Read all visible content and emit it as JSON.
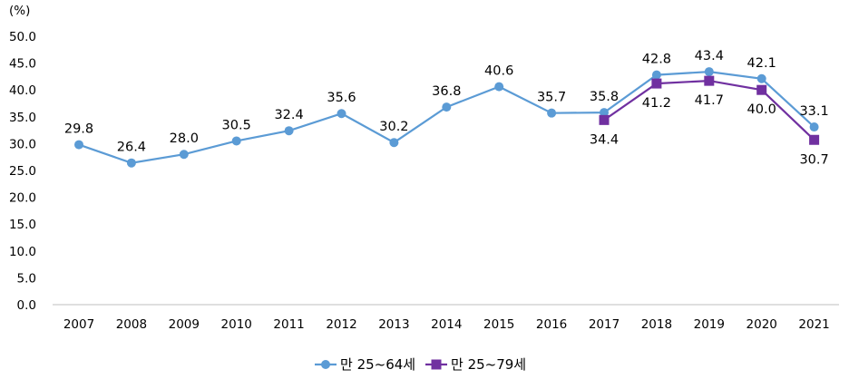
{
  "chart_data": {
    "type": "line",
    "unit_label": "(%)",
    "categories": [
      "2007",
      "2008",
      "2009",
      "2010",
      "2011",
      "2012",
      "2013",
      "2014",
      "2015",
      "2016",
      "2017",
      "2018",
      "2019",
      "2020",
      "2021"
    ],
    "ylim": [
      0,
      50
    ],
    "yticks": [
      "0.0",
      "5.0",
      "10.0",
      "15.0",
      "20.0",
      "25.0",
      "30.0",
      "35.0",
      "40.0",
      "45.0",
      "50.0"
    ],
    "series": [
      {
        "name": "만 25~64세",
        "color": "#5B9BD5",
        "marker": "circle",
        "values": [
          29.8,
          26.4,
          28.0,
          30.5,
          32.4,
          35.6,
          30.2,
          36.8,
          40.6,
          35.7,
          35.8,
          42.8,
          43.4,
          42.1,
          33.1
        ],
        "labels": [
          "29.8",
          "26.4",
          "28.0",
          "30.5",
          "32.4",
          "35.6",
          "30.2",
          "36.8",
          "40.6",
          "35.7",
          "35.8",
          "42.8",
          "43.4",
          "42.1",
          "33.1"
        ]
      },
      {
        "name": "만 25~79세",
        "color": "#7030A0",
        "marker": "square",
        "values": [
          null,
          null,
          null,
          null,
          null,
          null,
          null,
          null,
          null,
          null,
          34.4,
          41.2,
          41.7,
          40.0,
          30.7
        ],
        "labels": [
          "",
          "",
          "",
          "",
          "",
          "",
          "",
          "",
          "",
          "",
          "34.4",
          "41.2",
          "41.7",
          "40.0",
          "30.7"
        ]
      }
    ],
    "legend_position": "bottom"
  }
}
